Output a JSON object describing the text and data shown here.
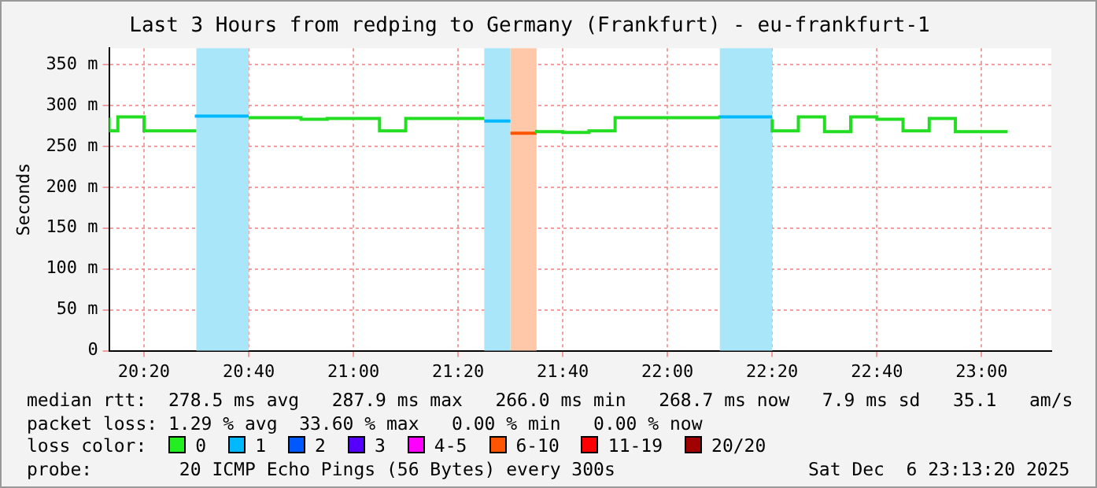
{
  "chart_data": {
    "type": "step",
    "title": "Last 3 Hours from redping to Germany (Frankfurt) - eu-frankfurt-1",
    "ylabel": "Seconds",
    "series": [
      {
        "color": "#22dd22",
        "x": [
          20.2222,
          20.25,
          20.3333,
          20.4167,
          20.5
        ],
        "values": [
          285,
          269,
          286,
          269,
          269
        ]
      },
      {
        "color": "#00b8ff",
        "x": [
          20.5,
          20.5833,
          20.6667
        ],
        "values": [
          285,
          287,
          287
        ]
      },
      {
        "color": "#22dd22",
        "x": [
          20.6667,
          20.75,
          20.8333,
          20.9167,
          21,
          21.0833,
          21.1667,
          21.25,
          21.3333,
          21.4167
        ],
        "values": [
          285,
          285,
          285,
          283,
          284,
          284,
          269,
          284,
          284,
          284
        ]
      },
      {
        "color": "#00b8ff",
        "x": [
          21.4167,
          21.5
        ],
        "values": [
          281,
          281
        ]
      },
      {
        "color": "#22dd22",
        "x": [
          21.5833,
          21.6667,
          21.75,
          21.8333,
          21.9167,
          22,
          22.0833,
          22.1667
        ],
        "values": [
          270,
          268,
          267,
          269,
          285,
          285,
          285,
          285
        ]
      },
      {
        "color": "#00b8ff",
        "x": [
          22.1667,
          22.25,
          22.3333
        ],
        "values": [
          285,
          286,
          286
        ]
      },
      {
        "color": "#22dd22",
        "x": [
          22.3333,
          22.4167,
          22.5,
          22.5833,
          22.6667,
          22.75,
          22.8333,
          22.9167,
          23,
          23.0833
        ],
        "values": [
          283,
          269,
          286,
          268,
          286,
          283,
          269,
          284,
          268,
          268
        ]
      },
      {
        "color": "#ff5500",
        "x": [
          21.5,
          21.5833
        ],
        "values": [
          266,
          266
        ]
      }
    ],
    "xlim": [
      20.2222,
      23.2222
    ],
    "xticks": [
      {
        "value": 20.3333,
        "label": "20:20"
      },
      {
        "value": 20.6667,
        "label": "20:40"
      },
      {
        "value": 21,
        "label": "21:00"
      },
      {
        "value": 21.3333,
        "label": "21:20"
      },
      {
        "value": 21.6667,
        "label": "21:40"
      },
      {
        "value": 22,
        "label": "22:00"
      },
      {
        "value": 22.3333,
        "label": "22:20"
      },
      {
        "value": 22.6667,
        "label": "22:40"
      },
      {
        "value": 23,
        "label": "23:00"
      }
    ],
    "ylim": [
      0,
      370
    ],
    "yticks": [
      0,
      {
        "value": 50,
        "label": "50 m"
      },
      {
        "value": 100,
        "label": "100 m"
      },
      {
        "value": 150,
        "label": "150 m"
      },
      {
        "value": 200,
        "label": "200 m"
      },
      {
        "value": 250,
        "label": "250 m"
      },
      {
        "value": 300,
        "label": "300 m"
      },
      {
        "value": 350,
        "label": "350 m"
      }
    ],
    "bands": [
      {
        "axis": "x",
        "from": 20.5,
        "to": 20.6667,
        "color": "#aae6fa"
      },
      {
        "axis": "x",
        "from": 21.4167,
        "to": 21.5,
        "color": "#aae6fa"
      },
      {
        "axis": "x",
        "from": 21.5,
        "to": 21.5833,
        "color": "#ffc8a8"
      },
      {
        "axis": "x",
        "from": 22.1667,
        "to": 22.3333,
        "color": "#aae6fa"
      }
    ],
    "grid": true,
    "annotations": [
      "median rtt:  278.5 ms avg   287.9 ms max   266.0 ms min   268.7 ms now   7.9 ms sd   35.1   am/s",
      "packet loss: 1.29 % avg  33.60 % max   0.00 % min   0.00 % now",
      "loss color:",
      "0",
      "1",
      "2",
      "3",
      "4-5",
      "6-10",
      "11-19",
      "20/20",
      "probe:        20 ICMP Echo Pings (56 Bytes) every 300s",
      "Sat Dec  6 23:13:20 2025"
    ]
  }
}
